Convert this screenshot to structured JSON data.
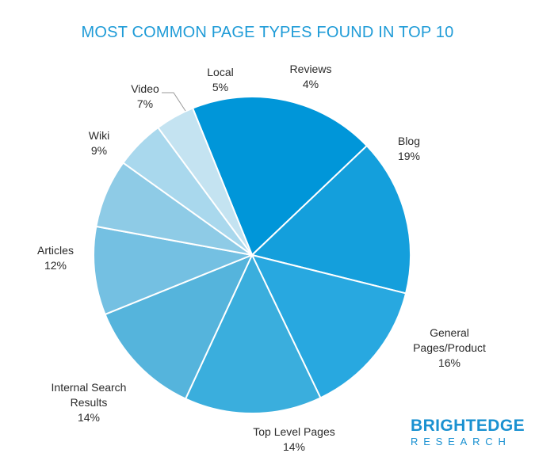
{
  "chart_data": {
    "type": "pie",
    "title": "MOST COMMON PAGE TYPES FOUND IN TOP 10",
    "slices": [
      {
        "label": "Blog",
        "value": 19,
        "value_label": "19%",
        "color": "#0096d9"
      },
      {
        "label": "General Pages/Product",
        "value": 16,
        "value_label": "16%",
        "color": "#149fdc"
      },
      {
        "label": "Top Level Pages",
        "value": 14,
        "value_label": "14%",
        "color": "#28a8e0"
      },
      {
        "label": "Internal Search Results",
        "value": 14,
        "value_label": "14%",
        "color": "#3aaedd"
      },
      {
        "label": "Articles",
        "value": 12,
        "value_label": "12%",
        "color": "#55b4dc"
      },
      {
        "label": "Wiki",
        "value": 9,
        "value_label": "9%",
        "color": "#74c0e2"
      },
      {
        "label": "Video",
        "value": 7,
        "value_label": "7%",
        "color": "#8ecbe6"
      },
      {
        "label": "Local",
        "value": 5,
        "value_label": "5%",
        "color": "#a9d8ed"
      },
      {
        "label": "Reviews",
        "value": 4,
        "value_label": "4%",
        "color": "#c4e3f1"
      }
    ],
    "legend": "none"
  },
  "logo": {
    "line1": "BRIGHTEDGE",
    "line2": "RESEARCH"
  }
}
